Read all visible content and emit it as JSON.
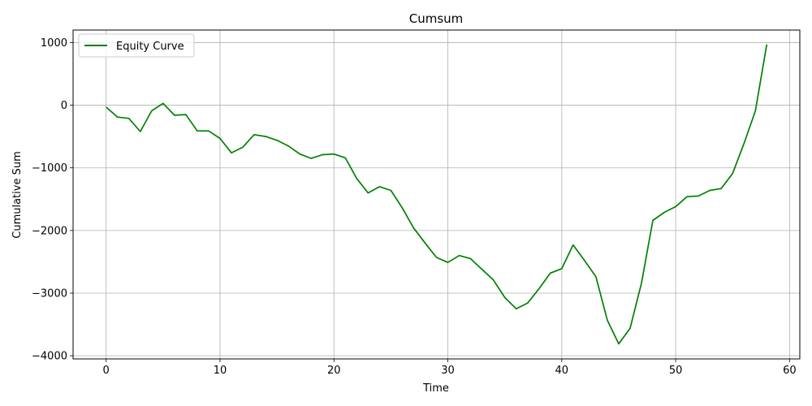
{
  "chart_data": {
    "type": "line",
    "title": "Cumsum",
    "xlabel": "Time",
    "ylabel": "Cumulative Sum",
    "xlim": [
      -2.9,
      60.9
    ],
    "ylim": [
      -4050,
      1200
    ],
    "xticks": [
      0,
      10,
      20,
      30,
      40,
      50,
      60
    ],
    "yticks": [
      -4000,
      -3000,
      -2000,
      -1000,
      0,
      1000
    ],
    "xtick_labels": [
      "0",
      "10",
      "20",
      "30",
      "40",
      "50",
      "60"
    ],
    "ytick_labels": [
      "−4000",
      "−3000",
      "−2000",
      "−1000",
      "0",
      "1000"
    ],
    "grid": true,
    "legend_position": "top-left",
    "series": [
      {
        "name": "Equity Curve",
        "color": "#008000",
        "x": [
          0,
          1,
          2,
          3,
          4,
          5,
          6,
          7,
          8,
          9,
          10,
          11,
          12,
          13,
          14,
          15,
          16,
          17,
          18,
          19,
          20,
          21,
          22,
          23,
          24,
          25,
          26,
          27,
          28,
          29,
          30,
          31,
          32,
          33,
          34,
          35,
          36,
          37,
          38,
          39,
          40,
          41,
          42,
          43,
          44,
          45,
          46,
          47,
          48,
          49,
          50,
          51,
          52,
          53,
          54,
          55,
          56,
          57,
          58
        ],
        "y": [
          -30,
          -190,
          -210,
          -420,
          -90,
          30,
          -160,
          -150,
          -410,
          -410,
          -530,
          -760,
          -670,
          -470,
          -500,
          -560,
          -650,
          -780,
          -850,
          -790,
          -780,
          -840,
          -1170,
          -1400,
          -1300,
          -1360,
          -1640,
          -1960,
          -2200,
          -2430,
          -2510,
          -2400,
          -2450,
          -2620,
          -2790,
          -3070,
          -3250,
          -3160,
          -2930,
          -2680,
          -2610,
          -2230,
          -2480,
          -2740,
          -3430,
          -3810,
          -3560,
          -2840,
          -1840,
          -1710,
          -1620,
          -1460,
          -1450,
          -1360,
          -1330,
          -1090,
          -610,
          -90,
          970
        ]
      }
    ]
  }
}
